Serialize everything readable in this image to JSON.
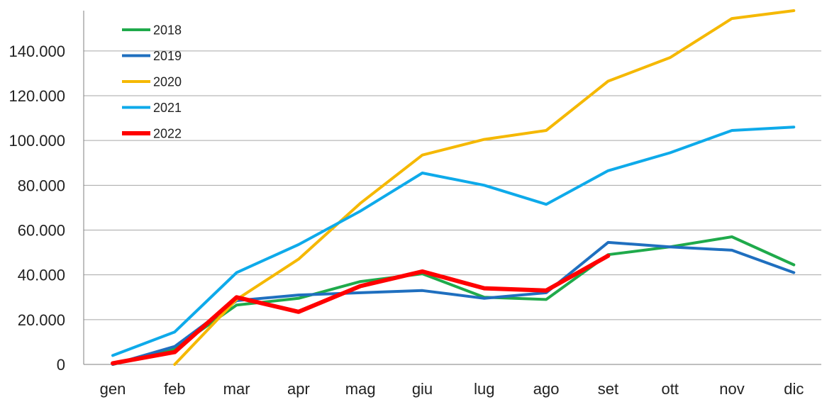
{
  "chart_data": {
    "type": "line",
    "title": "",
    "xlabel": "",
    "ylabel": "",
    "categories": [
      "gen",
      "feb",
      "mar",
      "apr",
      "mag",
      "giu",
      "lug",
      "ago",
      "set",
      "ott",
      "nov",
      "dic"
    ],
    "ylim": [
      0,
      158000
    ],
    "yticks": [
      0,
      20000,
      40000,
      60000,
      80000,
      100000,
      120000,
      140000
    ],
    "ytick_labels": [
      "0",
      "20.000",
      "40.000",
      "60.000",
      "80.000",
      "100.000",
      "120.000",
      "140.000"
    ],
    "grid": "horizontal",
    "legend_position": "top-left",
    "series": [
      {
        "name": "2018",
        "color": "#1faa4b",
        "values": [
          0,
          7000,
          26500,
          29500,
          37000,
          40500,
          30000,
          29000,
          49000,
          52500,
          57000,
          44500
        ]
      },
      {
        "name": "2019",
        "color": "#1f6fbf",
        "values": [
          0,
          8000,
          28500,
          31000,
          32000,
          33000,
          29500,
          32000,
          54500,
          52500,
          51000,
          41000
        ]
      },
      {
        "name": "2020",
        "color": "#f5b800",
        "values": [
          null,
          0,
          29000,
          47000,
          72000,
          93500,
          100500,
          104500,
          126500,
          137000,
          154500,
          158000
        ]
      },
      {
        "name": "2021",
        "color": "#0eaaea",
        "values": [
          4000,
          14500,
          41000,
          53500,
          68500,
          85500,
          80000,
          71500,
          86500,
          94500,
          104500,
          106000
        ]
      },
      {
        "name": "2022",
        "color": "#ff0000",
        "values": [
          500,
          5500,
          30000,
          23500,
          35000,
          41500,
          34000,
          33000,
          48500,
          null,
          null,
          null
        ]
      }
    ]
  }
}
